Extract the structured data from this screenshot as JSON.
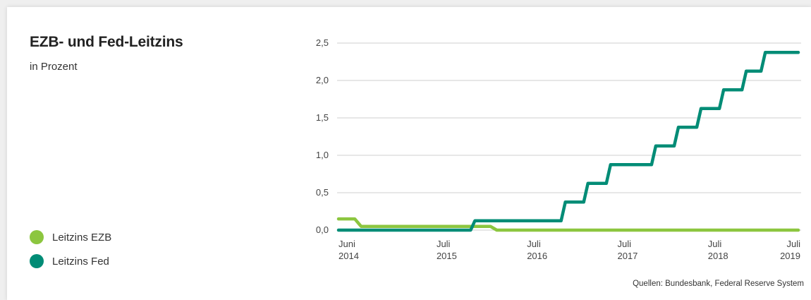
{
  "chart_data": {
    "type": "line",
    "title": "EZB- und Fed-Leitzins",
    "subtitle": "in Prozent",
    "source": "Quellen: Bundesbank, Federal Reserve System",
    "legend_position": "left",
    "grid": true,
    "x_range": [
      "2014-06",
      "2019-07"
    ],
    "ylim": [
      0,
      2.5
    ],
    "y_ticks": [
      {
        "value": 0.0,
        "label": "0,0"
      },
      {
        "value": 0.5,
        "label": "0,5"
      },
      {
        "value": 1.0,
        "label": "1,0"
      },
      {
        "value": 1.5,
        "label": "1,5"
      },
      {
        "value": 2.0,
        "label": "2,0"
      },
      {
        "value": 2.5,
        "label": "2,5"
      }
    ],
    "x_ticks": [
      {
        "date": "2014-06",
        "month": "Juni",
        "year": "2014"
      },
      {
        "date": "2015-07",
        "month": "Juli",
        "year": "2015"
      },
      {
        "date": "2016-07",
        "month": "Juli",
        "year": "2016"
      },
      {
        "date": "2017-07",
        "month": "Juli",
        "year": "2017"
      },
      {
        "date": "2018-07",
        "month": "Juli",
        "year": "2018"
      },
      {
        "date": "2019-07",
        "month": "Juli",
        "year": "2019"
      }
    ],
    "series": [
      {
        "name": "Leitzins EZB",
        "color": "#8cc63f",
        "points": [
          {
            "x": "2014-06",
            "y": 0.15
          },
          {
            "x": "2014-09",
            "y": 0.05
          },
          {
            "x": "2016-03",
            "y": 0.0
          },
          {
            "x": "2019-07",
            "y": 0.0
          }
        ]
      },
      {
        "name": "Leitzins Fed",
        "color": "#008c76",
        "points": [
          {
            "x": "2014-06",
            "y": 0.0
          },
          {
            "x": "2015-12",
            "y": 0.125
          },
          {
            "x": "2016-12",
            "y": 0.375
          },
          {
            "x": "2017-03",
            "y": 0.625
          },
          {
            "x": "2017-06",
            "y": 0.875
          },
          {
            "x": "2017-12",
            "y": 1.125
          },
          {
            "x": "2018-03",
            "y": 1.375
          },
          {
            "x": "2018-06",
            "y": 1.625
          },
          {
            "x": "2018-09",
            "y": 1.875
          },
          {
            "x": "2018-12",
            "y": 2.125
          },
          {
            "x": "2019-07",
            "y": 2.375
          }
        ]
      }
    ]
  }
}
